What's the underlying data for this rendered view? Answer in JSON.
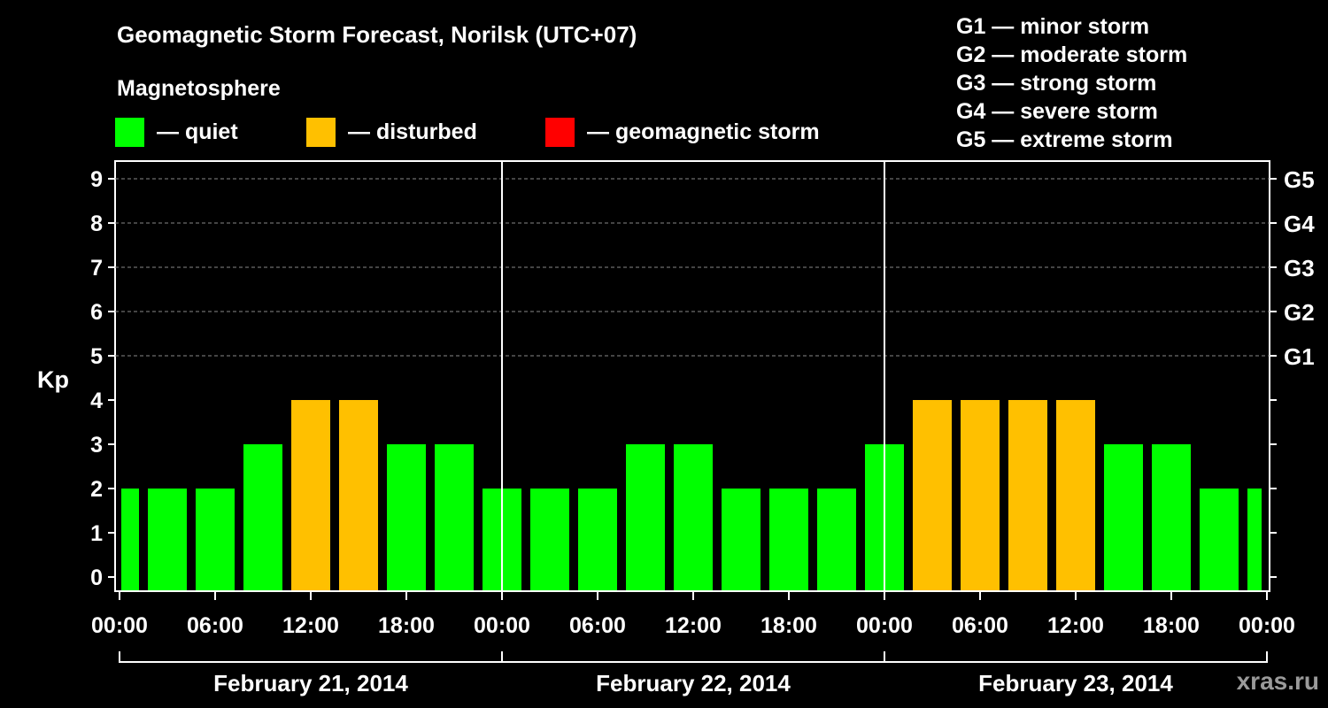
{
  "header": {
    "title": "Geomagnetic Storm Forecast, Norilsk (UTC+07)",
    "subtitle": "Magnetosphere"
  },
  "legend": [
    {
      "label": "— quiet",
      "color": "#00ff00"
    },
    {
      "label": "— disturbed",
      "color": "#ffc000"
    },
    {
      "label": "— geomagnetic storm",
      "color": "#ff0000"
    }
  ],
  "storm_levels": [
    "G1 — minor storm",
    "G2 — moderate storm",
    "G3 — strong storm",
    "G4 — severe storm",
    "G5 — extreme storm"
  ],
  "watermark": "xras.ru",
  "chart_data": {
    "type": "bar",
    "title": "Geomagnetic Storm Forecast, Norilsk (UTC+07)",
    "ylabel": "Kp",
    "ylim": [
      0,
      9
    ],
    "yticks": [
      "0",
      "1",
      "2",
      "3",
      "4",
      "5",
      "6",
      "7",
      "8",
      "9"
    ],
    "right_ticks": [
      {
        "kp": 5,
        "label": "G1"
      },
      {
        "kp": 6,
        "label": "G2"
      },
      {
        "kp": 7,
        "label": "G3"
      },
      {
        "kp": 8,
        "label": "G4"
      },
      {
        "kp": 9,
        "label": "G5"
      }
    ],
    "xtick_labels": [
      "00:00",
      "06:00",
      "12:00",
      "18:00",
      "00:00",
      "06:00",
      "12:00",
      "18:00",
      "00:00",
      "06:00",
      "12:00",
      "18:00",
      "00:00"
    ],
    "days": [
      "February 21, 2014",
      "February 22, 2014",
      "February 23, 2014"
    ],
    "interval_hours": 3,
    "values": [
      2,
      2,
      2,
      3,
      4,
      4,
      3,
      3,
      2,
      2,
      2,
      3,
      3,
      2,
      2,
      2,
      3,
      4,
      4,
      4,
      4,
      3,
      3,
      2,
      2
    ],
    "colors": {
      "quiet": "#00ff00",
      "disturbed": "#ffc000",
      "storm": "#ff0000"
    },
    "grid": true
  }
}
